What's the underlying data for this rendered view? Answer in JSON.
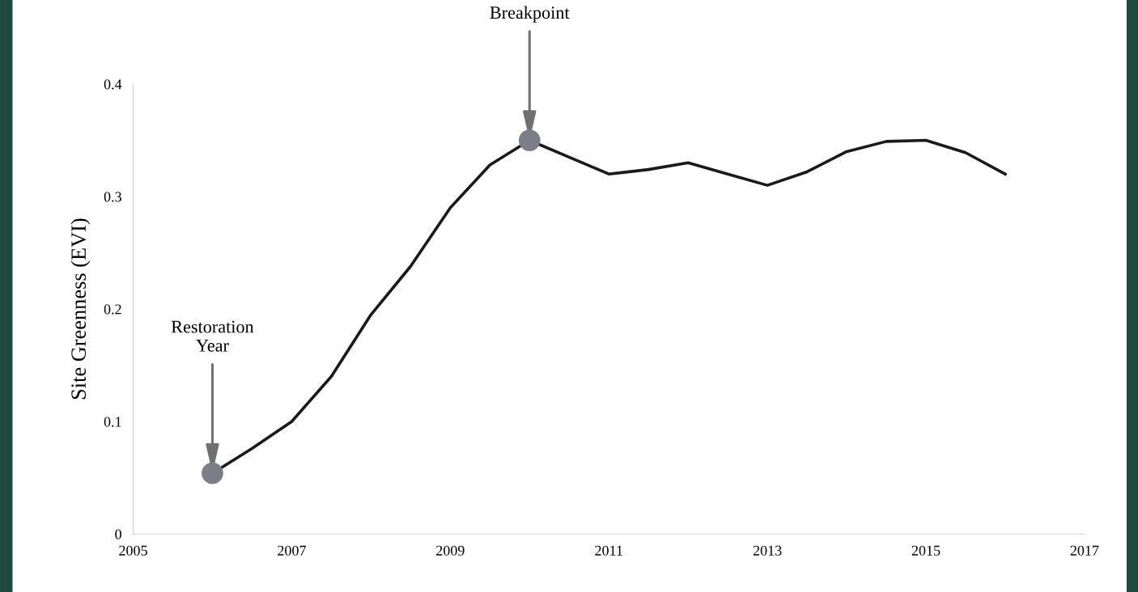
{
  "chart_data": {
    "type": "line",
    "ylabel": "Site Greenness (EVI)",
    "x": [
      2006,
      2006.5,
      2007,
      2007.5,
      2008,
      2008.5,
      2009,
      2009.5,
      2010,
      2010.5,
      2011,
      2011.5,
      2012,
      2012.5,
      2013,
      2013.5,
      2014,
      2014.5,
      2015,
      2015.5,
      2016
    ],
    "series": [
      {
        "color": "#1a1a1a",
        "values": [
          0.054,
          0.076,
          0.1,
          0.14,
          0.195,
          0.238,
          0.29,
          0.328,
          0.35,
          0.335,
          0.32,
          0.324,
          0.33,
          0.32,
          0.31,
          0.322,
          0.34,
          0.349,
          0.35,
          0.339,
          0.32
        ]
      },
      {
        "type": "scatter",
        "color": "#7b7d87",
        "marker": "circle",
        "x": [
          2006,
          2010
        ],
        "values": [
          0.054,
          0.35
        ]
      }
    ],
    "xlim": [
      2005,
      2017
    ],
    "xticks": [
      2005,
      2007,
      2009,
      2011,
      2013,
      2015,
      2017
    ],
    "ylim": [
      0,
      0.4
    ],
    "yticks": [
      {
        "value": 0,
        "label": "0"
      },
      0.1,
      0.2,
      0.3,
      0.4
    ],
    "grid": false,
    "annotations": [
      {
        "text": "Restoration\nYear",
        "x": 2006,
        "y": 0.054
      },
      {
        "text": "Breakpoint",
        "x": 2010,
        "y": 0.35
      }
    ]
  }
}
